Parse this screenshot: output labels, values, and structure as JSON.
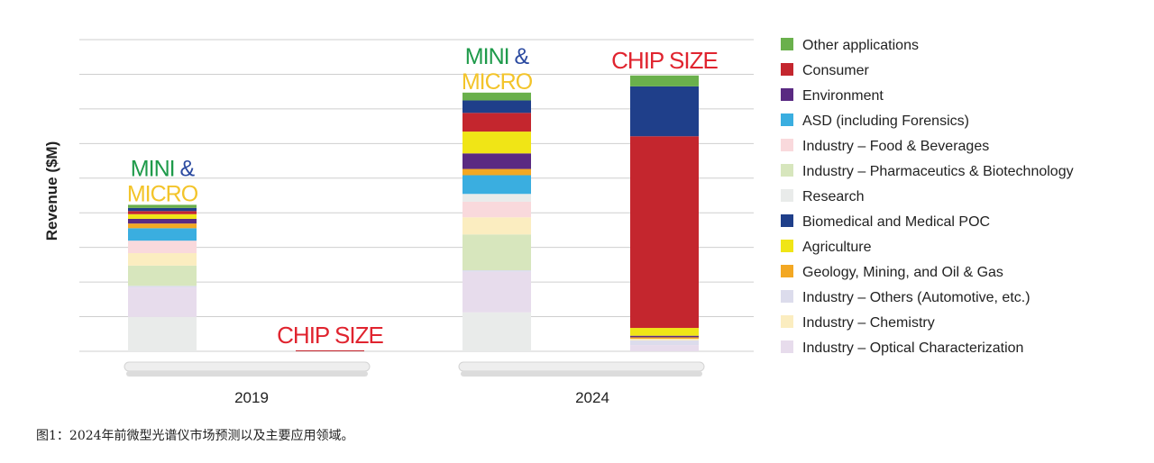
{
  "caption": "图1：2024年前微型光谱仪市场预测以及主要应用领域。",
  "chart_data": {
    "type": "bar",
    "stacked": true,
    "ylabel": "Revenue ($M)",
    "ylim": [
      0,
      100
    ],
    "grid": true,
    "legend_position": "right",
    "groups": [
      {
        "year": "2019",
        "bars": [
          {
            "label_words": [
              "MINI",
              "&",
              "MICRO"
            ],
            "segments": [
              {
                "category": "Research",
                "value": 11
              },
              {
                "category": "Industry – Optical Characterization",
                "value": 9.5
              },
              {
                "category": "Industry – Others (Automotive, etc.)",
                "value": 0.5
              },
              {
                "category": "Industry – Pharmaceutics & Biotechnology",
                "value": 6.5
              },
              {
                "category": "Industry – Chemistry",
                "value": 4
              },
              {
                "category": "Industry – Food & Beverages",
                "value": 4
              },
              {
                "category": "ASD (including Forensics)",
                "value": 4
              },
              {
                "category": "Geology, Mining, and Oil & Gas",
                "value": 1.5
              },
              {
                "category": "Environment",
                "value": 1.5
              },
              {
                "category": "Agriculture",
                "value": 1.5
              },
              {
                "category": "Consumer",
                "value": 1
              },
              {
                "category": "Biomedical and Medical POC",
                "value": 1
              },
              {
                "category": "Other applications",
                "value": 1
              }
            ]
          },
          {
            "label_words": [
              "CHIP",
              "SIZE"
            ],
            "segments": [
              {
                "category": "Consumer",
                "value": 0.3
              }
            ]
          }
        ]
      },
      {
        "year": "2024",
        "bars": [
          {
            "label_words": [
              "MINI",
              "&",
              "MICRO"
            ],
            "segments": [
              {
                "category": "Research",
                "value": 12.5
              },
              {
                "category": "Industry – Optical Characterization",
                "value": 13
              },
              {
                "category": "Industry – Others (Automotive, etc.)",
                "value": 0.5
              },
              {
                "category": "Industry – Pharmaceutics & Biotechnology",
                "value": 11.5
              },
              {
                "category": "Industry – Chemistry",
                "value": 5.5
              },
              {
                "category": "Industry – Food & Beverages",
                "value": 5
              },
              {
                "category": "Research",
                "value": 2.5
              },
              {
                "category": "ASD (including Forensics)",
                "value": 6
              },
              {
                "category": "Geology, Mining, and Oil & Gas",
                "value": 2
              },
              {
                "category": "Environment",
                "value": 5
              },
              {
                "category": "Agriculture",
                "value": 7
              },
              {
                "category": "Consumer",
                "value": 6
              },
              {
                "category": "Biomedical and Medical POC",
                "value": 4
              },
              {
                "category": "Other applications",
                "value": 2.5
              }
            ]
          },
          {
            "label_words": [
              "CHIP",
              "SIZE"
            ],
            "segments": [
              {
                "category": "Industry – Optical Characterization",
                "value": 2
              },
              {
                "category": "Industry – Others (Automotive, etc.)",
                "value": 1.5
              },
              {
                "category": "Industry – Chemistry",
                "value": 0.5
              },
              {
                "category": "Geology, Mining, and Oil & Gas",
                "value": 0.5
              },
              {
                "category": "Environment",
                "value": 0.5
              },
              {
                "category": "Agriculture",
                "value": 2.5
              },
              {
                "category": "Consumer",
                "value": 61.5
              },
              {
                "category": "Biomedical and Medical POC",
                "value": 16
              },
              {
                "category": "Other applications",
                "value": 3.5
              }
            ]
          }
        ]
      }
    ],
    "legend": [
      {
        "name": "Other applications",
        "color": "#6ab04c"
      },
      {
        "name": "Consumer",
        "color": "#c4262e"
      },
      {
        "name": "Environment",
        "color": "#5a2a82"
      },
      {
        "name": "ASD (including Forensics)",
        "color": "#3aaee0"
      },
      {
        "name": "Industry – Food & Beverages",
        "color": "#f9d9dc"
      },
      {
        "name": "Industry – Pharmaceutics & Biotechnology",
        "color": "#d7e6bd"
      },
      {
        "name": "Research",
        "color": "#e9ebea"
      },
      {
        "name": "Biomedical and Medical POC",
        "color": "#1f3f8a"
      },
      {
        "name": "Agriculture",
        "color": "#f0e516"
      },
      {
        "name": "Geology, Mining, and Oil & Gas",
        "color": "#f3a823"
      },
      {
        "name": "Industry – Others (Automotive, etc.)",
        "color": "#dcdcec"
      },
      {
        "name": "Industry – Chemistry",
        "color": "#fbedc0"
      },
      {
        "name": "Industry – Optical Characterization",
        "color": "#e7dcec"
      }
    ],
    "label_colors": {
      "mini": "#1e9a4a",
      "amp": "#2b4aa0",
      "micro": "#f3c42a",
      "chip": "#e0242f"
    }
  }
}
